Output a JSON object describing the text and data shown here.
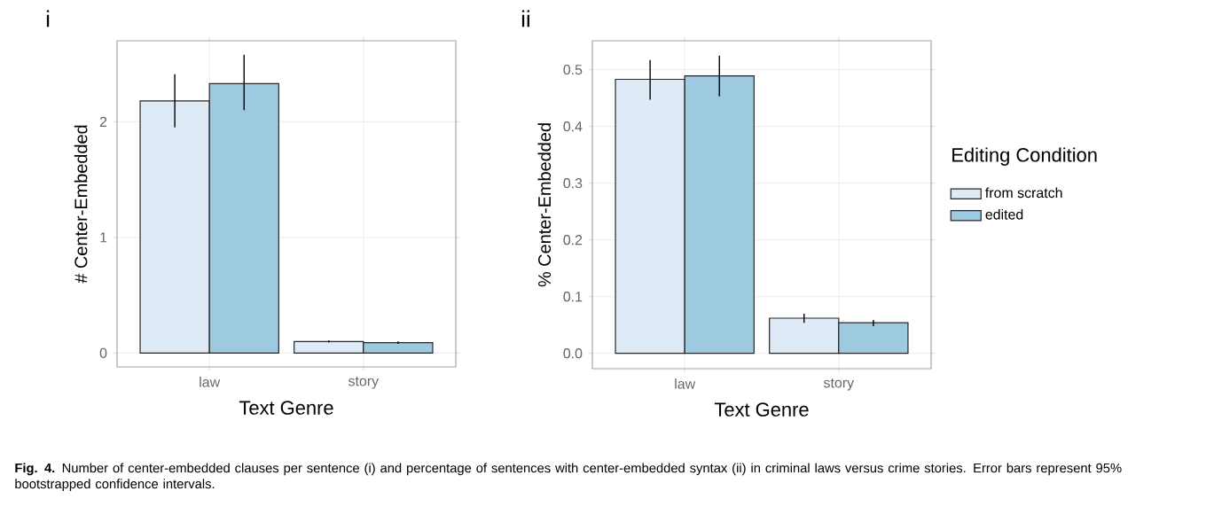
{
  "chart_data": [
    {
      "type": "bar",
      "title": "i",
      "xlabel": "Text Genre",
      "ylabel": "# Center-Embedded",
      "categories": [
        "law",
        "story"
      ],
      "series": [
        {
          "color": "#deebf7",
          "values": [
            2.18,
            0.1
          ],
          "errors": [
            [
              1.95,
              2.41
            ],
            [
              0.09,
              0.11
            ]
          ]
        },
        {
          "color": "#9ecae1",
          "values": [
            2.33,
            0.09
          ],
          "errors": [
            [
              2.1,
              2.58
            ],
            [
              0.08,
              0.1
            ]
          ]
        }
      ],
      "ylim": [
        -0.12,
        2.7
      ],
      "yticks": [
        0,
        1,
        2
      ],
      "grid": true,
      "annotations": [
        "**Fig. 4.** Number of center-embedded clauses per sentence (i) and percentage of sentences with center-embedded syntax (ii) in criminal laws versus crime stories. Error bars represent 95% bootstrapped confidence intervals."
      ]
    },
    {
      "type": "bar",
      "title": "ii",
      "xlabel": "Text Genre",
      "ylabel": "% Center-Embedded",
      "categories": [
        "law",
        "story"
      ],
      "series": [
        {
          "name": "from scratch",
          "color": "#deebf7",
          "values": [
            0.483,
            0.062
          ],
          "errors": [
            [
              0.447,
              0.517
            ],
            [
              0.054,
              0.07
            ]
          ]
        },
        {
          "name": "edited",
          "color": "#9ecae1",
          "values": [
            0.489,
            0.054
          ],
          "errors": [
            [
              0.453,
              0.525
            ],
            [
              0.048,
              0.059
            ]
          ]
        }
      ],
      "ylim": [
        -0.027,
        0.551
      ],
      "yticks": [
        {
          "value": 0,
          "label": "0.0"
        },
        0.1,
        0.2,
        0.3,
        0.4,
        0.5
      ],
      "grid": true,
      "legend": "right",
      "legend_title": "Editing Condition"
    }
  ]
}
